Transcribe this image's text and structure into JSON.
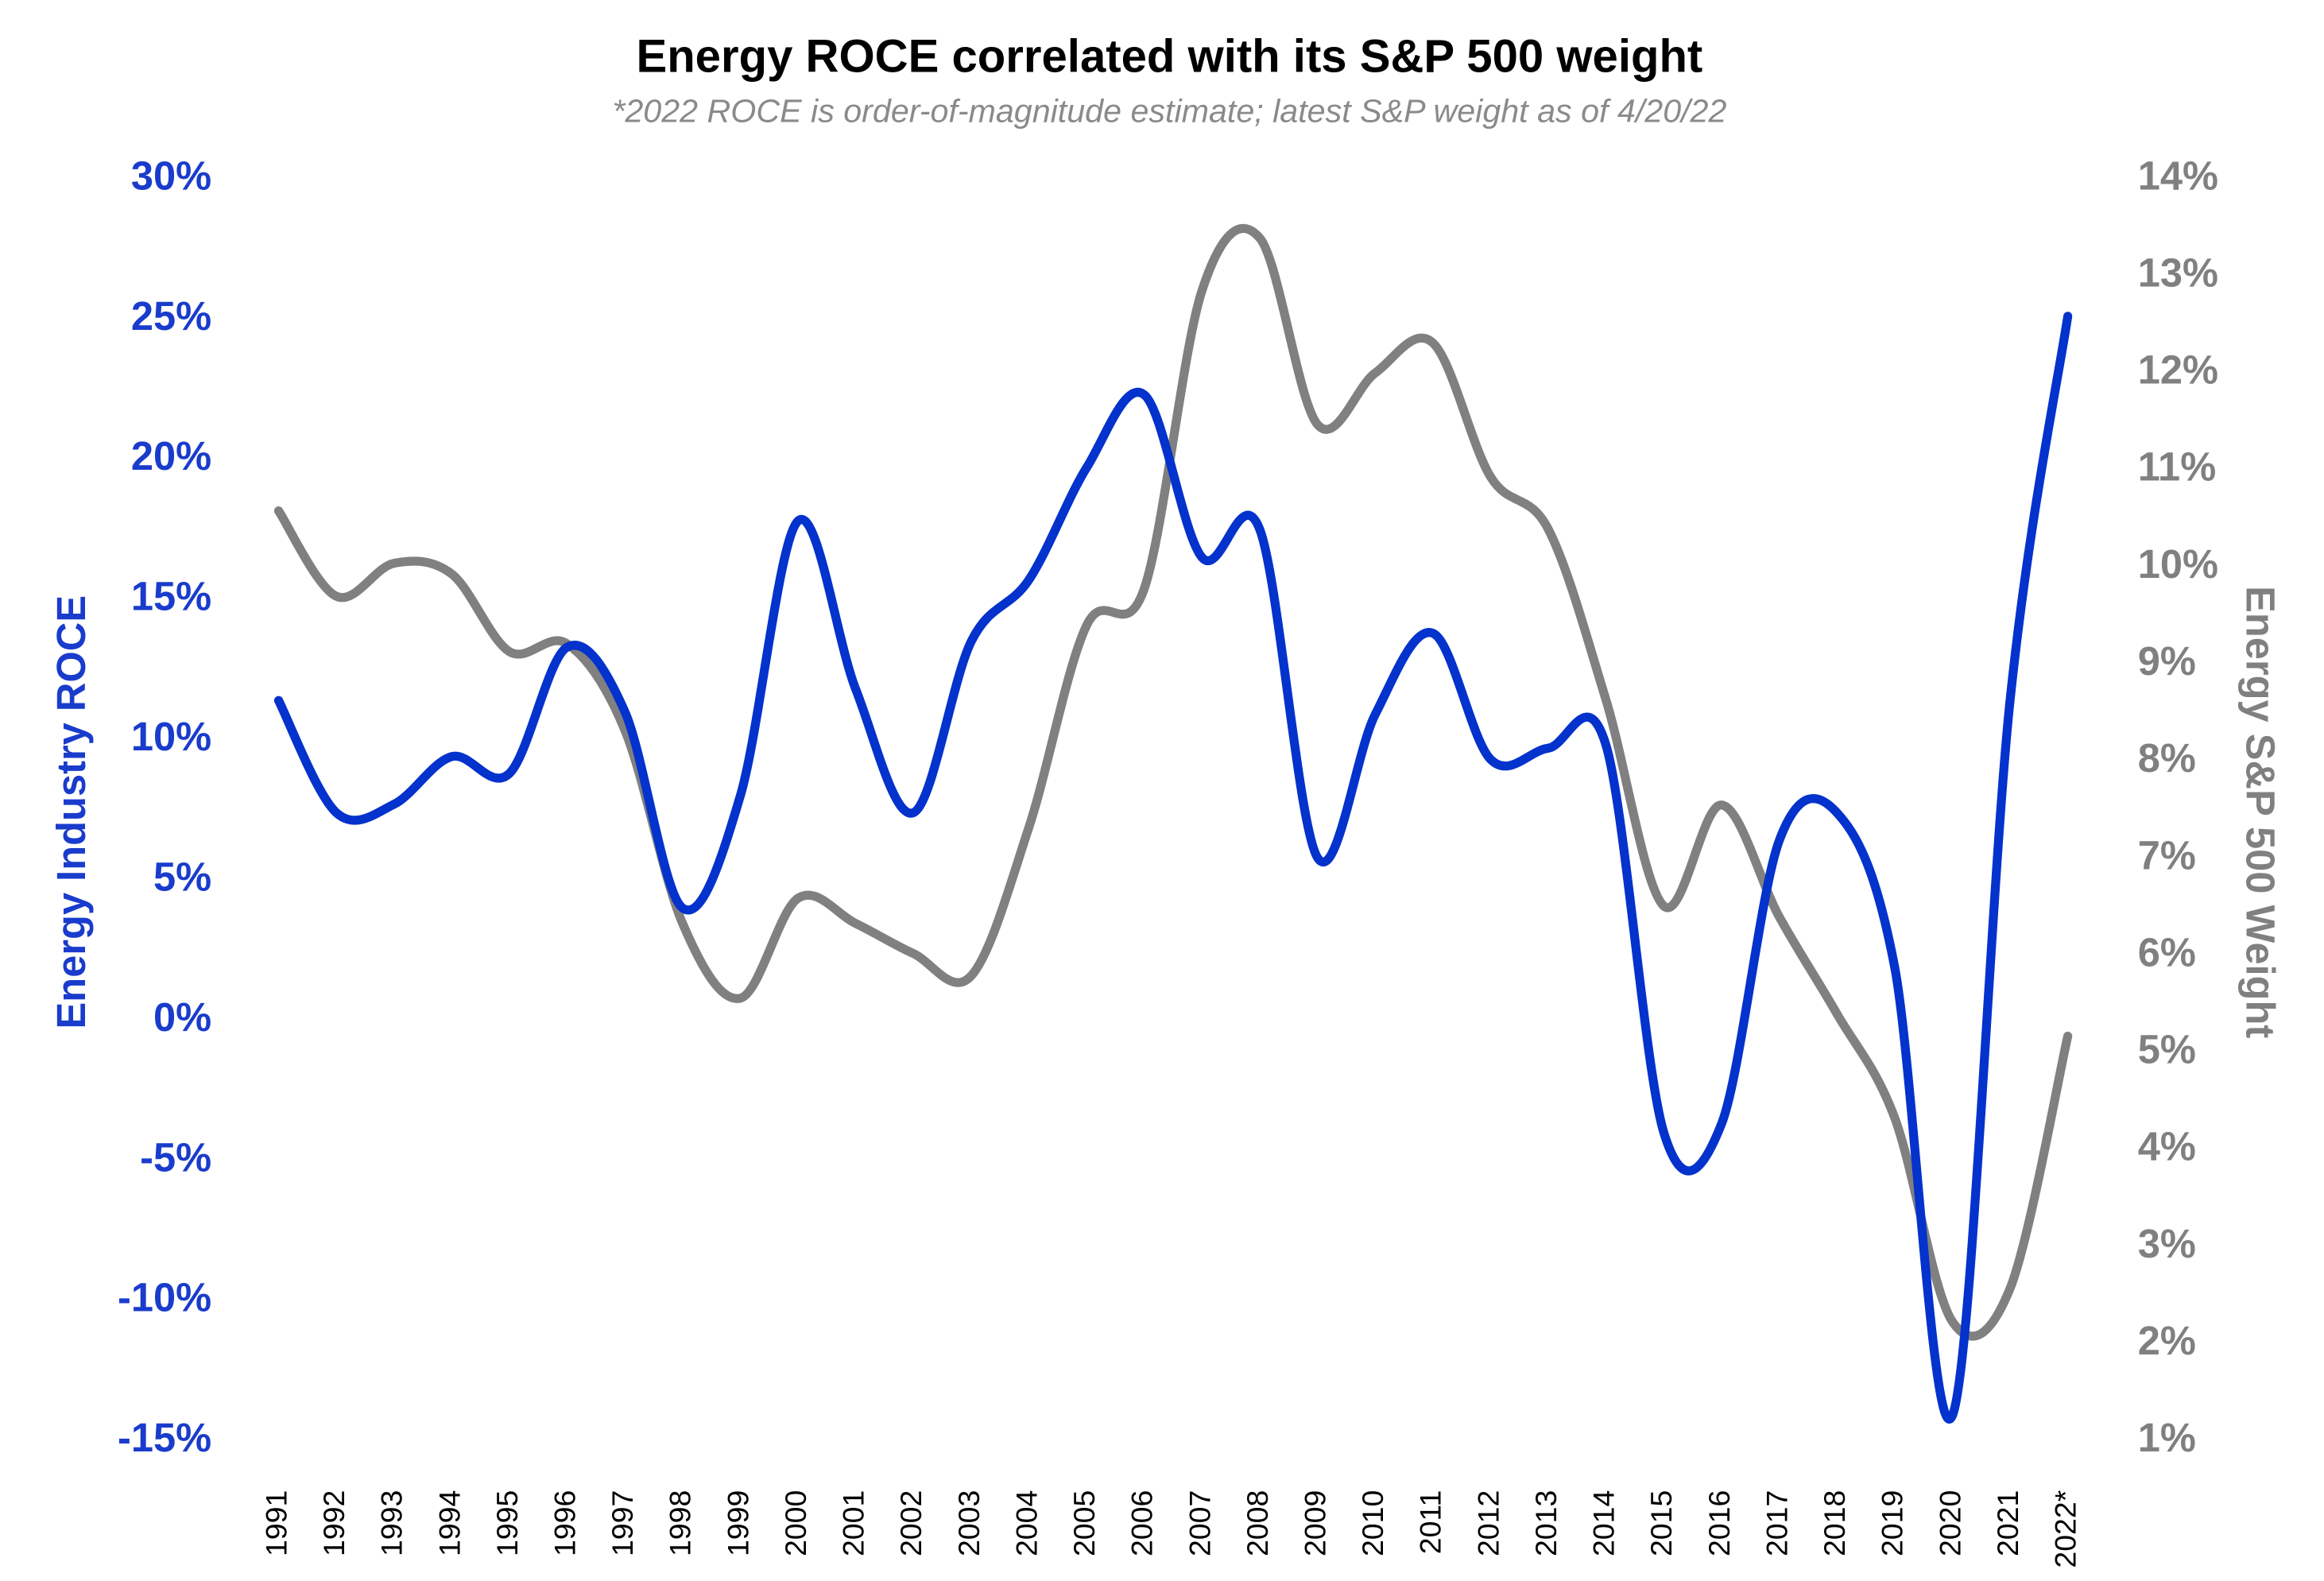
{
  "chart_data": {
    "type": "line",
    "title": "Energy ROCE correlated with its S&P 500 weight",
    "subtitle": "*2022 ROCE is order-of-magnitude estimate; latest S&P weight as of 4/20/22",
    "ylabel": "Energy Industry ROCE",
    "y2label": "Energy S&P 500 Weight",
    "categories": [
      "1991",
      "1992",
      "1993",
      "1994",
      "1995",
      "1996",
      "1997",
      "1998",
      "1999",
      "2000",
      "2001",
      "2002",
      "2003",
      "2004",
      "2005",
      "2006",
      "2007",
      "2008",
      "2009",
      "2010",
      "2011",
      "2012",
      "2013",
      "2014",
      "2015",
      "2016",
      "2017",
      "2018",
      "2019",
      "2020",
      "2021",
      "2022*"
    ],
    "series": [
      {
        "color": "#0432cc",
        "axis": "y",
        "values": [
          11.4,
          7.4,
          7.7,
          9.4,
          8.8,
          13.3,
          11.0,
          4.0,
          8.0,
          17.8,
          11.8,
          7.4,
          13.5,
          15.7,
          19.7,
          22.3,
          16.5,
          17.5,
          5.8,
          10.9,
          13.8,
          9.3,
          9.7,
          9.8,
          -4.0,
          -3.7,
          6.4,
          7.4,
          1.9,
          -14.1,
          11.4,
          25.1
        ]
      },
      {
        "color": "#808080",
        "axis": "y2",
        "values": [
          10.58,
          9.7,
          10.04,
          9.93,
          9.13,
          9.21,
          8.32,
          6.33,
          5.56,
          6.59,
          6.33,
          6.02,
          5.79,
          7.32,
          9.4,
          9.78,
          12.85,
          13.39,
          11.47,
          12.0,
          12.31,
          10.93,
          10.39,
          8.63,
          6.51,
          7.55,
          6.4,
          5.4,
          4.33,
          2.23,
          2.57,
          5.17
        ]
      }
    ],
    "ylim": [
      -15,
      30
    ],
    "yticks": [
      {
        "value": -15,
        "label": "-15%"
      },
      {
        "value": -10,
        "label": "-10%"
      },
      {
        "value": -5,
        "label": "-5%"
      },
      {
        "value": 0,
        "label": "0%"
      },
      {
        "value": 5,
        "label": "5%"
      },
      {
        "value": 10,
        "label": "10%"
      },
      {
        "value": 15,
        "label": "15%"
      },
      {
        "value": 20,
        "label": "20%"
      },
      {
        "value": 25,
        "label": "25%"
      },
      {
        "value": 30,
        "label": "30%"
      }
    ],
    "y2lim": [
      1,
      14
    ],
    "y2ticks": [
      {
        "value": 1,
        "label": "1%"
      },
      {
        "value": 2,
        "label": "2%"
      },
      {
        "value": 3,
        "label": "3%"
      },
      {
        "value": 4,
        "label": "4%"
      },
      {
        "value": 5,
        "label": "5%"
      },
      {
        "value": 6,
        "label": "6%"
      },
      {
        "value": 7,
        "label": "7%"
      },
      {
        "value": 8,
        "label": "8%"
      },
      {
        "value": 9,
        "label": "9%"
      },
      {
        "value": 10,
        "label": "10%"
      },
      {
        "value": 11,
        "label": "11%"
      },
      {
        "value": 12,
        "label": "12%"
      },
      {
        "value": 13,
        "label": "13%"
      },
      {
        "value": 14,
        "label": "14%"
      }
    ],
    "ycolor": "#1a3ccc",
    "y2color": "#808080",
    "grid": false
  }
}
